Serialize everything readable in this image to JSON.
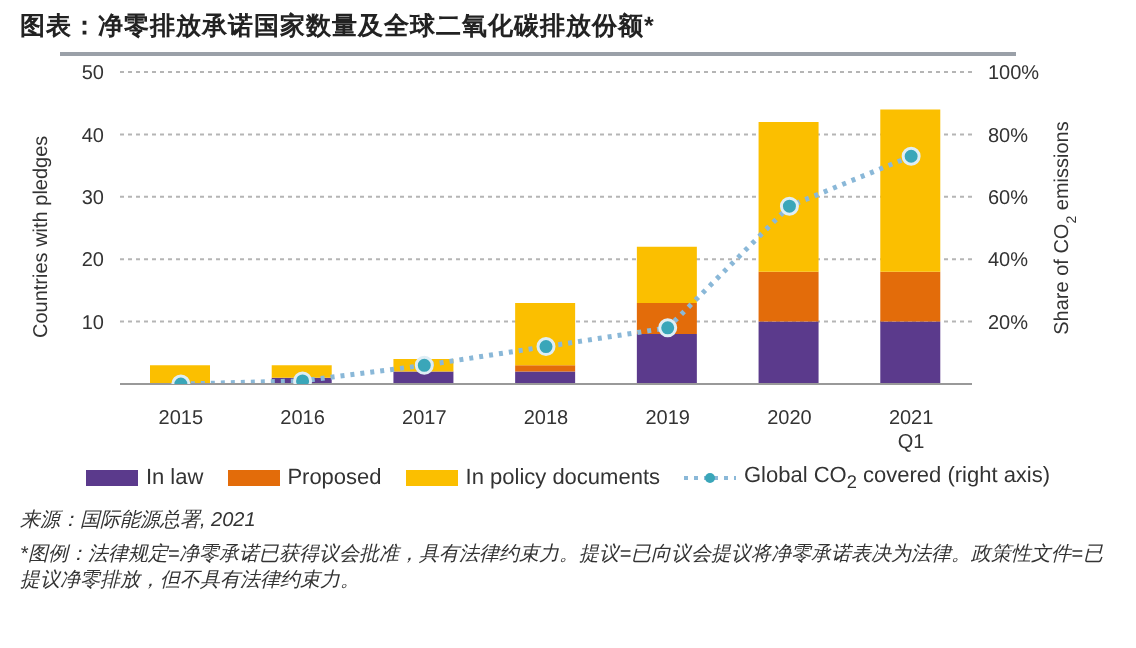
{
  "chart_data": {
    "type": "bar",
    "title": "图表：净零排放承诺国家数量及全球二氧化碳排放份额*",
    "ylabel": "Countries with pledges",
    "y2label": "Share of CO$_{2}$ emissions",
    "categories": [
      "2015",
      "2016",
      "2017",
      "2018",
      "2019",
      "2020",
      "2021\nQ1"
    ],
    "stacked": true,
    "series": [
      {
        "name": "In law",
        "color": "#5b3a8c",
        "values": [
          0,
          1,
          2,
          2,
          8,
          10,
          10
        ]
      },
      {
        "name": "Proposed",
        "color": "#e36c0a",
        "values": [
          0,
          0,
          0,
          1,
          5,
          8,
          8
        ]
      },
      {
        "name": "In policy documents",
        "color": "#fbbf00",
        "values": [
          3,
          2,
          2,
          10,
          9,
          24,
          26
        ]
      },
      {
        "name": "Global CO$_{2}$ covered (right axis)",
        "type": "line",
        "axis": "y2",
        "color": "#3aa6b9",
        "values": [
          0,
          1,
          6,
          12,
          18,
          57,
          73
        ],
        "marker": "circle",
        "line_style": "dotted"
      }
    ],
    "ylim": [
      0,
      50
    ],
    "yticks": [
      10,
      20,
      30,
      40,
      50
    ],
    "y2lim": [
      0,
      100
    ],
    "y2ticks": [
      {
        "value": 20,
        "label": "20%"
      },
      {
        "value": 40,
        "label": "40%"
      },
      {
        "value": 60,
        "label": "60%"
      },
      {
        "value": 80,
        "label": "80%"
      },
      {
        "value": 100,
        "label": "100%"
      }
    ],
    "grid": "y",
    "legend": "bottom",
    "annotations": [
      "来源：国际能源总署, 2021",
      "*图例：法律规定=净零承诺已获得议会批准，具有法律约束力。提议=已向议会提议将净零承诺表决为法律。政策性文件=已提议净零排放，但不具有法律约束力。"
    ]
  }
}
